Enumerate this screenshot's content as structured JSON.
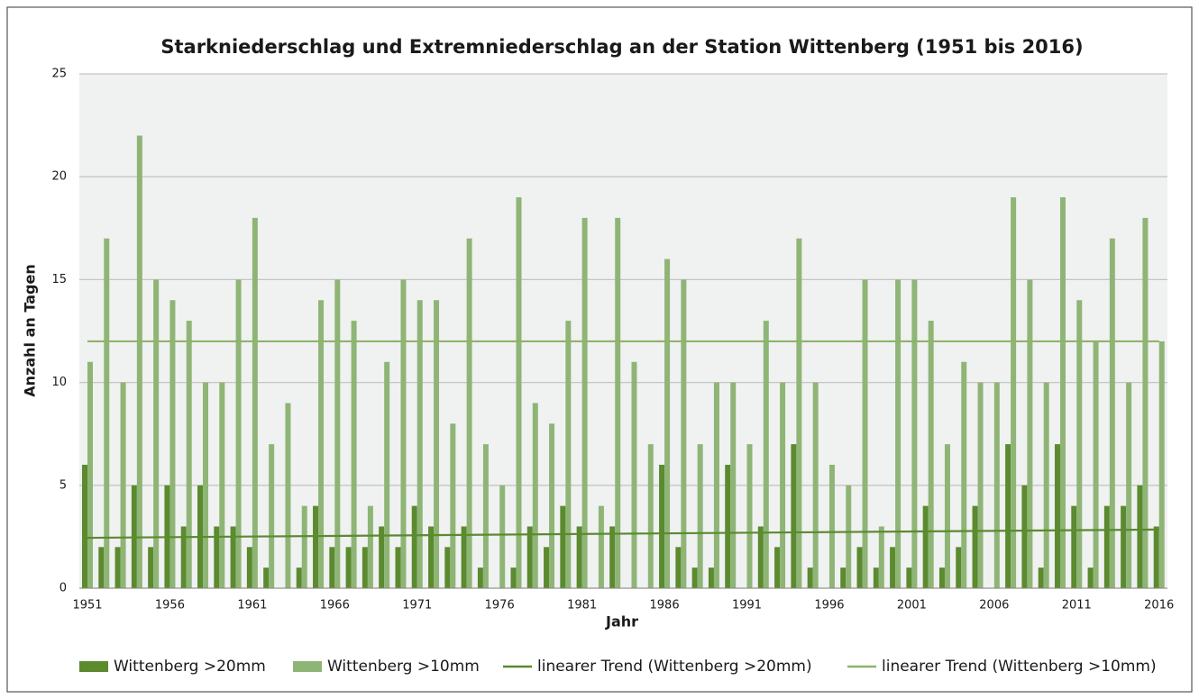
{
  "chart_data": {
    "type": "bar",
    "title": "Starkniederschlag und Extremniederschlag an der Station Wittenberg (1951 bis 2016)",
    "x_label": "Jahr",
    "y_label": "Anzahl an Tagen",
    "categories": [
      "1951",
      null,
      null,
      null,
      null,
      "1956",
      null,
      null,
      null,
      null,
      "1961",
      null,
      null,
      null,
      null,
      "1966",
      null,
      null,
      null,
      null,
      "1971",
      null,
      null,
      null,
      null,
      "1976",
      null,
      null,
      null,
      null,
      "1981",
      null,
      null,
      null,
      null,
      "1986",
      null,
      null,
      null,
      null,
      "1991",
      null,
      null,
      null,
      null,
      "1996",
      null,
      null,
      null,
      null,
      "2001",
      null,
      null,
      null,
      null,
      "2006",
      null,
      null,
      null,
      null,
      "2011",
      null,
      null,
      null,
      null,
      "2016"
    ],
    "series": [
      {
        "name": "Wittenberg >20mm",
        "color": "#5b8a2f",
        "type": "bar",
        "values": [
          6,
          2,
          2,
          5,
          2,
          5,
          3,
          5,
          3,
          3,
          2,
          1,
          0,
          1,
          4,
          2,
          2,
          2,
          3,
          2,
          4,
          3,
          2,
          3,
          1,
          0,
          1,
          3,
          2,
          4,
          3,
          0,
          3,
          0,
          0,
          6,
          2,
          1,
          1,
          6,
          0,
          3,
          2,
          7,
          1,
          0,
          1,
          2,
          1,
          2,
          1,
          4,
          1,
          2,
          4,
          0,
          7,
          5,
          1,
          7,
          4,
          1,
          4,
          4,
          5,
          3
        ]
      },
      {
        "name": "Wittenberg >10mm",
        "color": "#8fb576",
        "type": "bar",
        "values": [
          11,
          17,
          10,
          22,
          15,
          14,
          13,
          10,
          10,
          15,
          18,
          7,
          9,
          4,
          14,
          15,
          13,
          4,
          11,
          15,
          14,
          14,
          8,
          17,
          7,
          5,
          19,
          9,
          8,
          13,
          18,
          4,
          18,
          11,
          7,
          16,
          15,
          7,
          10,
          10,
          7,
          13,
          10,
          17,
          10,
          6,
          5,
          15,
          3,
          15,
          15,
          13,
          7,
          11,
          10,
          10,
          19,
          15,
          10,
          19,
          14,
          12,
          17,
          10,
          18,
          12
        ]
      },
      {
        "name": "linearer Trend (Wittenberg >20mm)",
        "color": "#5b8a2f",
        "type": "line",
        "x": [
          "1951",
          "2016"
        ],
        "values": [
          2.45,
          2.85
        ]
      },
      {
        "name": "linearer Trend (Wittenberg >10mm)",
        "color": "#8fb36a",
        "type": "line",
        "x": [
          "1951",
          "2016"
        ],
        "values": [
          12,
          12
        ]
      }
    ],
    "ylim": [
      0,
      25
    ],
    "yticks": [
      0,
      5,
      10,
      15,
      20,
      25
    ],
    "grid": true
  }
}
